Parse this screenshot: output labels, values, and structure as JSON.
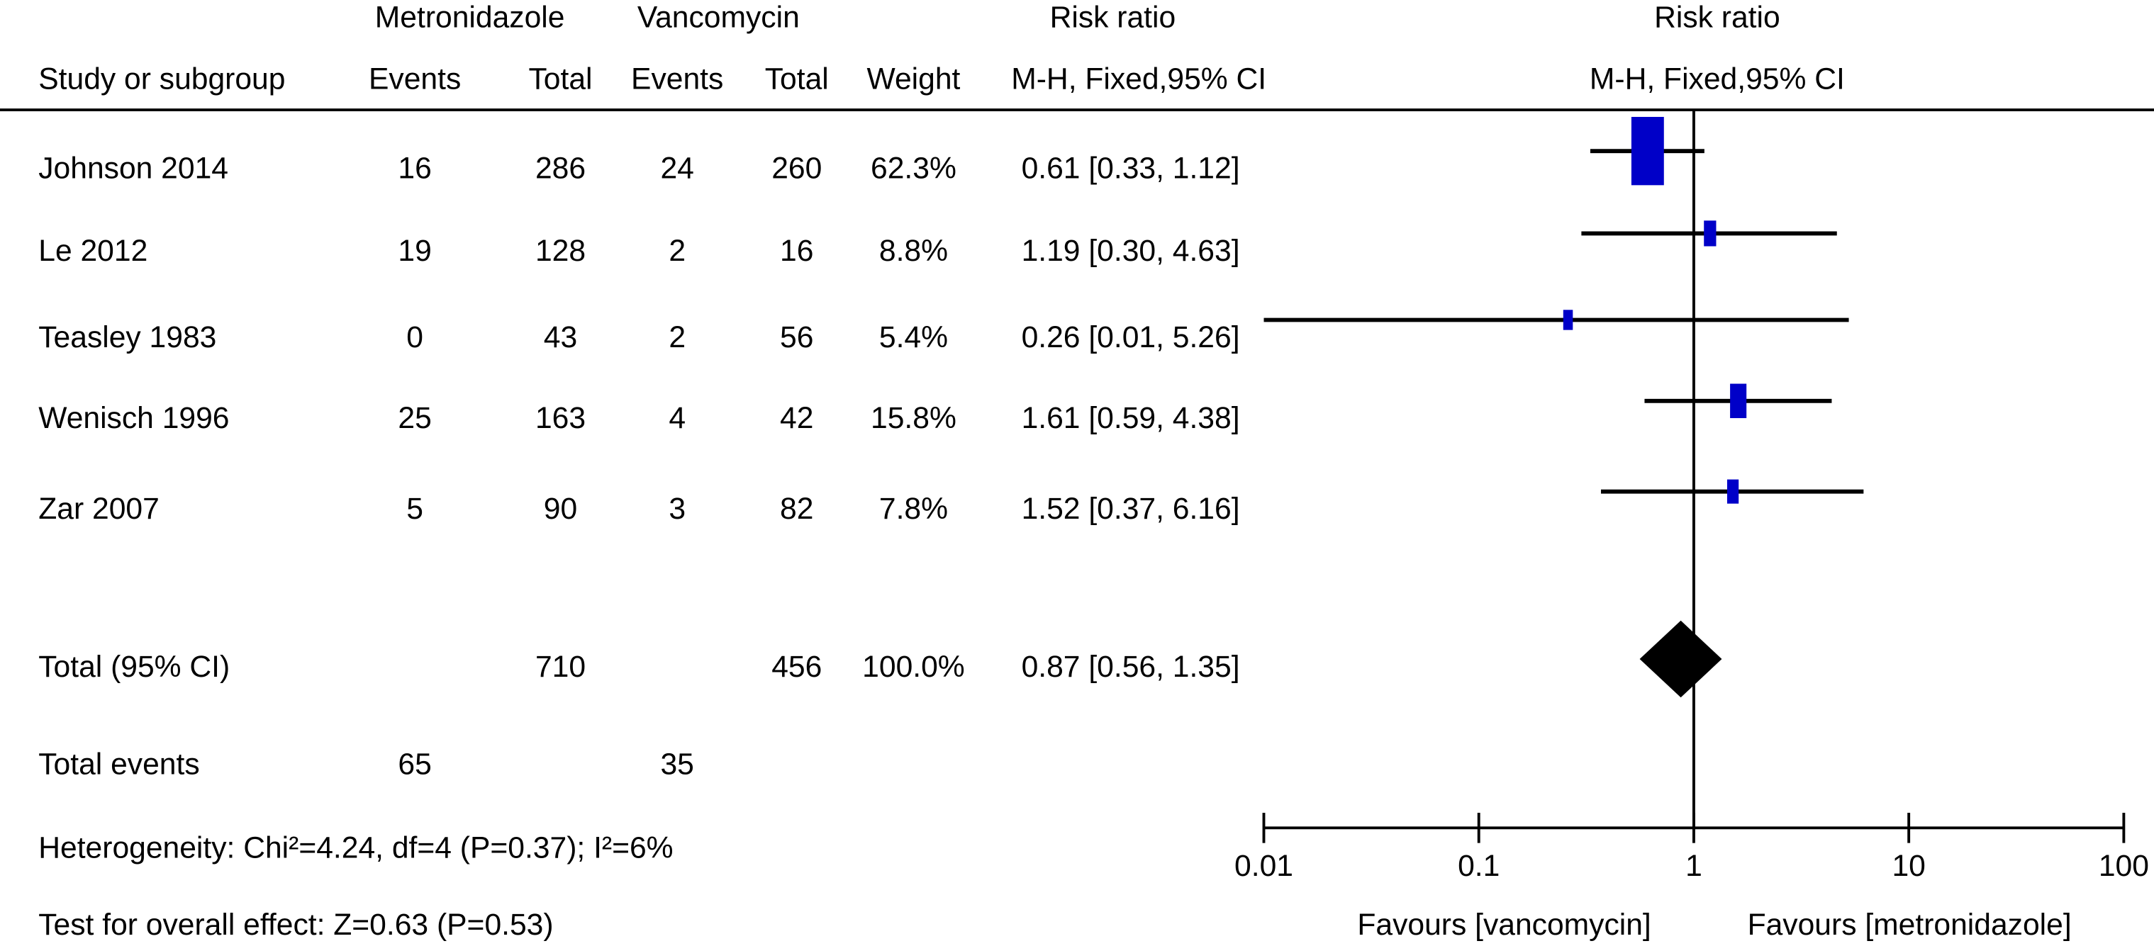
{
  "chart_data": {
    "type": "forest",
    "group_headers": [
      "Metronidazole",
      "Vancomycin"
    ],
    "risk_ratio_header": "Risk ratio",
    "columns": [
      "Study or subgroup",
      "Events",
      "Total",
      "Events",
      "Total",
      "Weight",
      "M-H, Fixed,95% CI"
    ],
    "studies": [
      {
        "name": "Johnson 2014",
        "events1": 16,
        "total1": 286,
        "events2": 24,
        "total2": 260,
        "weight": 62.3,
        "weight_label": "62.3%",
        "rr": 0.61,
        "lo": 0.33,
        "hi": 1.12,
        "ci_label": "0.61 [0.33, 1.12]"
      },
      {
        "name": "Le 2012",
        "events1": 19,
        "total1": 128,
        "events2": 2,
        "total2": 16,
        "weight": 8.8,
        "weight_label": "8.8%",
        "rr": 1.19,
        "lo": 0.3,
        "hi": 4.63,
        "ci_label": "1.19 [0.30, 4.63]"
      },
      {
        "name": "Teasley 1983",
        "events1": 0,
        "total1": 43,
        "events2": 2,
        "total2": 56,
        "weight": 5.4,
        "weight_label": "5.4%",
        "rr": 0.26,
        "lo": 0.01,
        "hi": 5.26,
        "ci_label": "0.26 [0.01, 5.26]"
      },
      {
        "name": "Wenisch 1996",
        "events1": 25,
        "total1": 163,
        "events2": 4,
        "total2": 42,
        "weight": 15.8,
        "weight_label": "15.8%",
        "rr": 1.61,
        "lo": 0.59,
        "hi": 4.38,
        "ci_label": "1.61 [0.59, 4.38]"
      },
      {
        "name": "Zar 2007",
        "events1": 5,
        "total1": 90,
        "events2": 3,
        "total2": 82,
        "weight": 7.8,
        "weight_label": "7.8%",
        "rr": 1.52,
        "lo": 0.37,
        "hi": 6.16,
        "ci_label": "1.52 [0.37, 6.16]"
      }
    ],
    "total": {
      "name": "Total (95% CI)",
      "total1": 710,
      "total2": 456,
      "weight": 100.0,
      "weight_label": "100.0%",
      "rr": 0.87,
      "lo": 0.56,
      "hi": 1.35,
      "ci_label": "0.87 [0.56, 1.35]"
    },
    "total_events": {
      "name": "Total events",
      "events1": 65,
      "events2": 35
    },
    "heterogeneity": "Heterogeneity: Chi²=4.24, df=4 (P=0.37); I²=6%",
    "overall_effect": "Test for overall effect: Z=0.63 (P=0.53)",
    "xscale": "log",
    "xlim": [
      0.01,
      100
    ],
    "xticks": [
      0.01,
      0.1,
      1,
      10,
      100
    ],
    "favours": [
      "Favours [vancomycin]",
      "Favours [metronidazole]"
    ],
    "box_color": "#0000c8",
    "diamond_color": "#000000"
  }
}
